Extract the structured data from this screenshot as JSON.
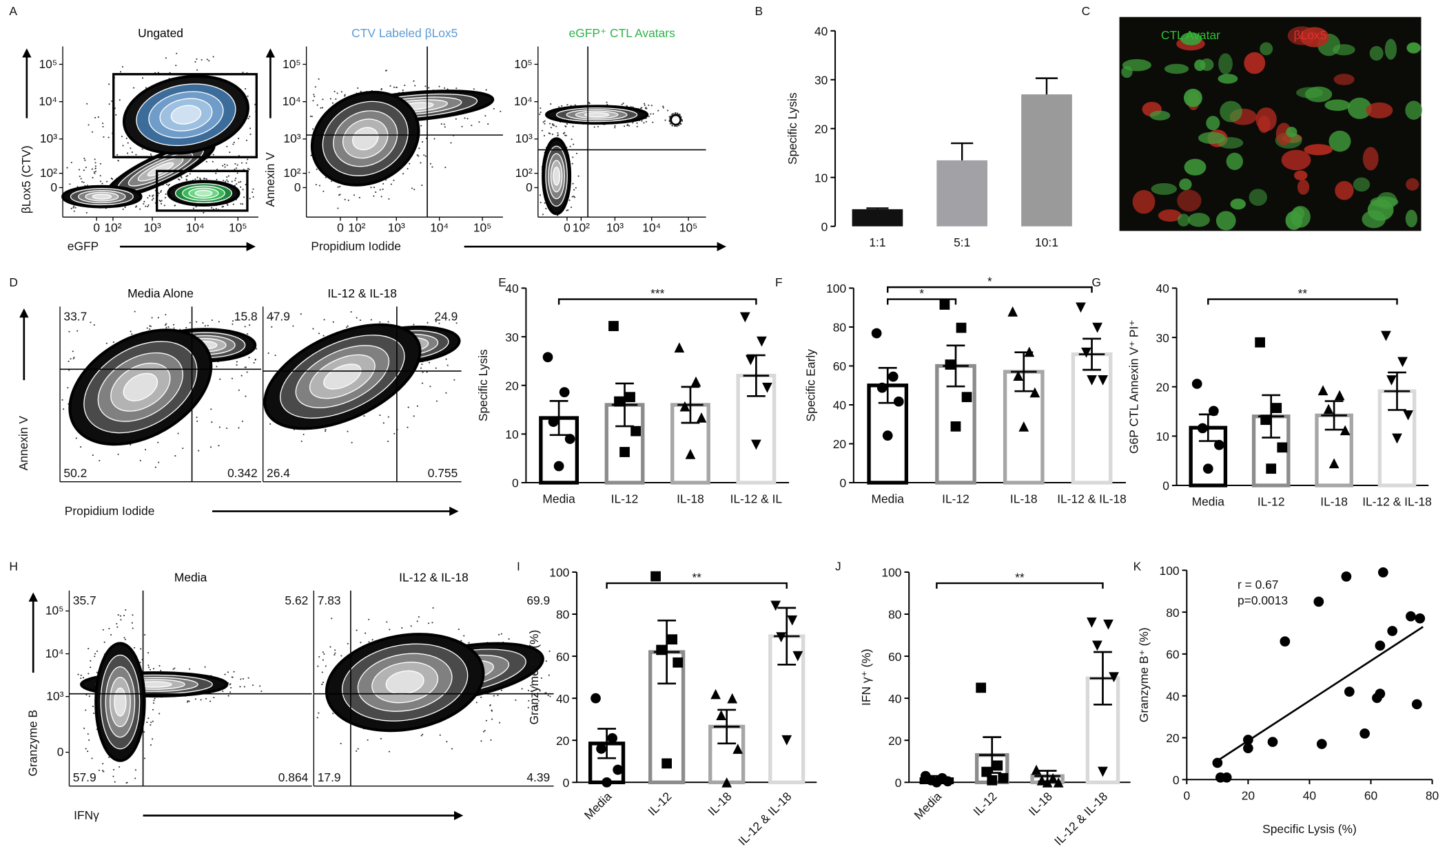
{
  "chart_data": [
    {
      "panel": "A",
      "type": "flow",
      "plots": [
        {
          "title": "Ungated",
          "title_color": "#000000",
          "xlabel": "eGFP",
          "ylabel": "βLox5 (CTV)",
          "xlim": [
            -300,
            300000
          ],
          "ylim": [
            -300,
            300000
          ],
          "xticks": [
            0,
            {
              "value": 100,
              "label": "10²"
            },
            {
              "value": 1000,
              "label": "10³"
            },
            {
              "value": 10000,
              "label": "10⁴"
            },
            {
              "value": 100000,
              "label": "10⁵"
            }
          ],
          "yticks": [
            0,
            {
              "value": 100,
              "label": "10²"
            },
            {
              "value": 1000,
              "label": "10³"
            },
            {
              "value": 10000,
              "label": "10⁴"
            },
            {
              "value": 100000,
              "label": "10⁵"
            }
          ]
        },
        {
          "title": "CTV Labeled βLox5",
          "title_color": "#5b9bd5",
          "xlabel": "Propidium Iodide",
          "ylabel": "Annexin V",
          "xlim": [
            -300,
            300000
          ],
          "ylim": [
            -300,
            300000
          ],
          "xticks": [
            0,
            {
              "value": 100,
              "label": "10²"
            },
            {
              "value": 1000,
              "label": "10³"
            },
            {
              "value": 10000,
              "label": "10⁴"
            },
            {
              "value": 100000,
              "label": "10⁵"
            }
          ],
          "yticks": [
            0,
            {
              "value": 100,
              "label": "10²"
            },
            {
              "value": 1000,
              "label": "10³"
            },
            {
              "value": 10000,
              "label": "10⁴"
            },
            {
              "value": 100000,
              "label": "10⁵"
            }
          ]
        },
        {
          "title": "eGFP⁺ CTL Avatars",
          "title_color": "#2db34a",
          "xlim": [
            -300,
            300000
          ],
          "ylim": [
            -300,
            300000
          ],
          "xticks": [
            0,
            {
              "value": 100,
              "label": "10²"
            },
            {
              "value": 1000,
              "label": "10³"
            },
            {
              "value": 10000,
              "label": "10⁴"
            },
            {
              "value": 100000,
              "label": "10⁵"
            }
          ],
          "yticks": [
            0,
            {
              "value": 100,
              "label": "10²"
            },
            {
              "value": 1000,
              "label": "10³"
            },
            {
              "value": 10000,
              "label": "10⁴"
            },
            {
              "value": 100000,
              "label": "10⁵"
            }
          ]
        }
      ]
    },
    {
      "panel": "B",
      "type": "bar",
      "ylabel": "Specific Lysis",
      "categories": [
        "1:1",
        "5:1",
        "10:1"
      ],
      "values": [
        3.5,
        13.5,
        27
      ],
      "errors": [
        0.2,
        3.5,
        3.3
      ],
      "colors": [
        "#111111",
        "#a1a1a6",
        "#9a9a9a"
      ],
      "ylim": [
        0,
        40
      ],
      "yticks": [
        0,
        10,
        20,
        30,
        40
      ]
    },
    {
      "panel": "C",
      "type": "image",
      "labels": [
        "CTL Avatar",
        "βLox5"
      ],
      "label_colors": [
        "#2fc32f",
        "#e03030"
      ]
    },
    {
      "panel": "D",
      "type": "flow",
      "plots": [
        {
          "title": "Media Alone",
          "title_color": "#000000",
          "xlabel": "Propidium Iodide",
          "ylabel": "Annexin V",
          "quadrants": [
            33.7,
            15.8,
            50.2,
            0.342
          ]
        },
        {
          "title": "IL-12 & IL-18",
          "title_color": "#000000",
          "quadrants": [
            47.9,
            24.9,
            26.4,
            0.755
          ]
        }
      ]
    },
    {
      "panel": "E",
      "type": "dotbar",
      "ylabel": "Specific Lysis",
      "categories": [
        "Media",
        "IL-12",
        "IL-18",
        "IL-12 & IL"
      ],
      "values": [
        13.3,
        16,
        16,
        22
      ],
      "errors": [
        3.5,
        4.4,
        3.7,
        4.2
      ],
      "points": [
        [
          25.8,
          18.6,
          12.5,
          9,
          3.4
        ],
        [
          32.2,
          17.6,
          16.7,
          10.6,
          6.3
        ],
        [
          27.8,
          20.8,
          15.7,
          13.4,
          5.9
        ],
        [
          34,
          29,
          25.2,
          19.5,
          7.8
        ]
      ],
      "markers": [
        "circle",
        "square",
        "triangle-up",
        "triangle-down"
      ],
      "colors": [
        "#000000",
        "#8c8c8c",
        "#a6a6a6",
        "#d9d9d9"
      ],
      "ylim": [
        0,
        40
      ],
      "yticks": [
        0,
        10,
        20,
        30,
        40
      ],
      "significance": [
        {
          "from": 0,
          "to": 3,
          "label": "***"
        }
      ]
    },
    {
      "panel": "F",
      "type": "dotbar",
      "ylabel": "Specific Early",
      "categories": [
        "Media",
        "IL-12",
        "IL-18",
        "IL-12 & IL-18"
      ],
      "values": [
        50,
        60,
        57,
        66
      ],
      "errors": [
        9,
        10.5,
        10,
        8
      ],
      "points": [
        [
          76.8,
          54.5,
          48.8,
          41.7,
          24.2
        ],
        [
          91.5,
          79.6,
          60.7,
          44,
          28.9
        ],
        [
          88,
          67.3,
          55,
          46.4,
          28.9
        ],
        [
          90,
          79.6,
          66.8,
          52.6,
          52.6
        ]
      ],
      "markers": [
        "circle",
        "square",
        "triangle-up",
        "triangle-down"
      ],
      "colors": [
        "#000000",
        "#8c8c8c",
        "#a6a6a6",
        "#d9d9d9"
      ],
      "ylim": [
        0,
        100
      ],
      "yticks": [
        0,
        20,
        40,
        60,
        80,
        100
      ],
      "significance": [
        {
          "from": 0,
          "to": 1,
          "label": "*"
        },
        {
          "from": 0,
          "to": 3,
          "label": "*"
        }
      ]
    },
    {
      "panel": "G",
      "type": "dotbar",
      "ylabel": "G6P CTL Annexin V⁺ PI⁺",
      "categories": [
        "Media",
        "IL-12",
        "IL-18",
        "IL-12 & IL-18"
      ],
      "values": [
        11.7,
        14,
        14.2,
        19.1
      ],
      "errors": [
        2.7,
        4.3,
        2.9,
        3.8
      ],
      "points": [
        [
          20.6,
          15.1,
          11.6,
          8.2,
          3.4
        ],
        [
          29,
          15.7,
          13.3,
          7.7,
          3.4
        ],
        [
          19.3,
          18.3,
          15.5,
          11.2,
          4.5
        ],
        [
          30.3,
          25,
          21.3,
          14.2,
          9.5
        ]
      ],
      "markers": [
        "circle",
        "square",
        "triangle-up",
        "triangle-down"
      ],
      "colors": [
        "#000000",
        "#8c8c8c",
        "#a6a6a6",
        "#d9d9d9"
      ],
      "ylim": [
        0,
        40
      ],
      "yticks": [
        0,
        10,
        20,
        30,
        40
      ],
      "significance": [
        {
          "from": 0,
          "to": 3,
          "label": "**"
        }
      ]
    },
    {
      "panel": "H",
      "type": "flow",
      "plots": [
        {
          "title": "Media",
          "title_color": "#000000",
          "xlabel": "IFNγ",
          "ylabel": "Granzyme B",
          "ylim": [
            -300,
            300000
          ],
          "yticks": [
            0,
            {
              "value": 1000,
              "label": "10³"
            },
            {
              "value": 10000,
              "label": "10⁴"
            },
            {
              "value": 100000,
              "label": "10⁵"
            }
          ],
          "quadrants": [
            35.7,
            5.62,
            57.9,
            0.864
          ]
        },
        {
          "title": "IL-12 & IL-18",
          "title_color": "#000000",
          "quadrants": [
            7.83,
            69.9,
            17.9,
            4.39
          ]
        }
      ]
    },
    {
      "panel": "I",
      "type": "dotbar",
      "ylabel": "Granzyme B⁺ (%)",
      "categories": [
        "Media",
        "IL-12",
        "IL-18",
        "IL-12 & IL-18"
      ],
      "label_rotation": -45,
      "values": [
        18.5,
        62,
        26.5,
        69.5
      ],
      "errors": [
        7,
        15,
        8,
        13.5
      ],
      "points": [
        [
          40,
          21,
          16,
          6,
          0
        ],
        [
          98,
          68,
          63,
          57,
          9
        ],
        [
          42,
          40,
          32,
          16,
          0
        ],
        [
          84,
          77,
          69,
          60,
          20
        ]
      ],
      "markers": [
        "circle",
        "square",
        "triangle-up",
        "triangle-down"
      ],
      "colors": [
        "#000000",
        "#8c8c8c",
        "#a6a6a6",
        "#d9d9d9"
      ],
      "ylim": [
        0,
        100
      ],
      "yticks": [
        0,
        20,
        40,
        60,
        80,
        100
      ],
      "significance": [
        {
          "from": 0,
          "to": 3,
          "label": "**"
        }
      ]
    },
    {
      "panel": "J",
      "type": "dotbar",
      "ylabel": "IFN γ⁺ (%)",
      "categories": [
        "Media",
        "IL-12",
        "IL-18",
        "IL-12 & IL-18"
      ],
      "label_rotation": -45,
      "values": [
        1.5,
        13,
        3,
        49.5
      ],
      "errors": [
        1.5,
        8.5,
        2.5,
        12.5
      ],
      "points": [
        [
          3,
          2,
          1,
          0.5,
          0
        ],
        [
          45,
          8,
          5,
          2,
          1
        ],
        [
          6,
          2,
          1,
          0,
          0
        ],
        [
          76,
          75,
          65,
          50,
          5
        ]
      ],
      "markers": [
        "circle",
        "square",
        "triangle-up",
        "triangle-down"
      ],
      "colors": [
        "#000000",
        "#8c8c8c",
        "#a6a6a6",
        "#d9d9d9"
      ],
      "ylim": [
        0,
        100
      ],
      "yticks": [
        0,
        20,
        40,
        60,
        80,
        100
      ],
      "significance": [
        {
          "from": 0,
          "to": 3,
          "label": "**"
        }
      ]
    },
    {
      "panel": "K",
      "type": "scatter",
      "xlabel": "Specific Lysis (%)",
      "ylabel": "Granzyme B⁺ (%)",
      "x": [
        10,
        11,
        13,
        20,
        20,
        28,
        32,
        43,
        44,
        52,
        53,
        58,
        62,
        63,
        63,
        64,
        67,
        73,
        75,
        76
      ],
      "y": [
        8,
        1,
        1,
        19,
        15,
        18,
        66,
        85,
        17,
        97,
        42,
        22,
        39,
        64,
        41,
        99,
        71,
        78,
        36,
        77
      ],
      "fit": {
        "x": [
          10,
          77
        ],
        "y": [
          9,
          73
        ]
      },
      "annotations": [
        "r = 0.67",
        "p=0.0013"
      ],
      "xlim": [
        0,
        80
      ],
      "ylim": [
        0,
        100
      ],
      "xticks": [
        0,
        20,
        40,
        60,
        80
      ],
      "yticks": [
        0,
        20,
        40,
        60,
        80,
        100
      ]
    }
  ]
}
